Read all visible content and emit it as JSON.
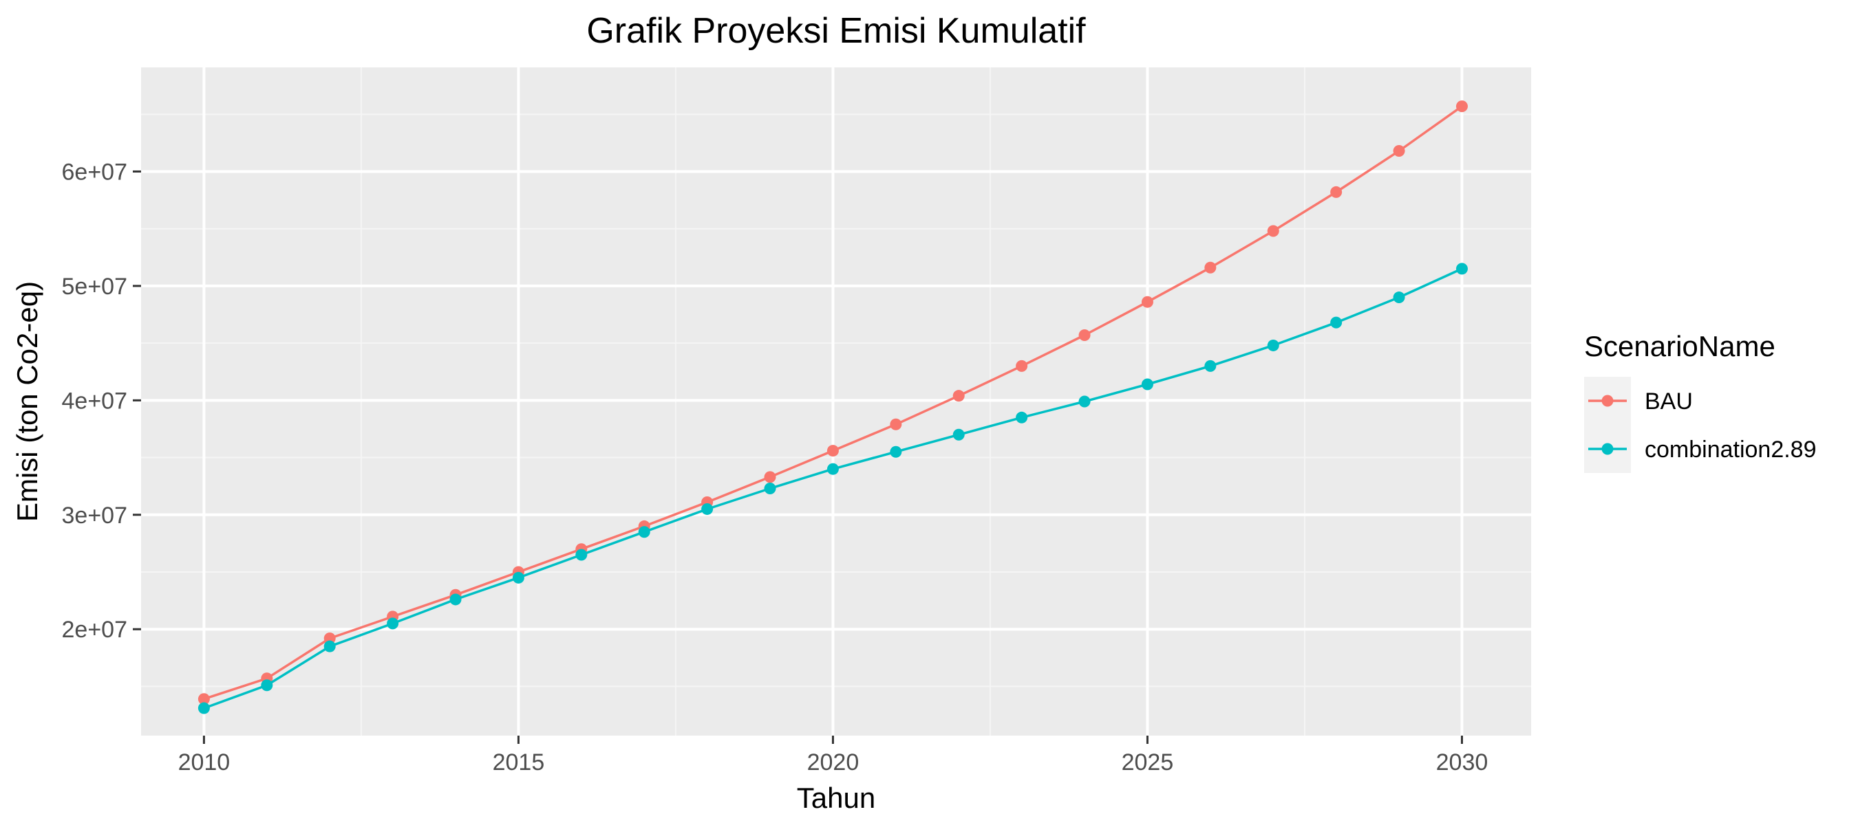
{
  "chart_data": {
    "type": "line",
    "title": "Grafik Proyeksi Emisi Kumulatif",
    "xlabel": "Tahun",
    "ylabel": "Emisi (ton Co2-eq)",
    "xlim": [
      2009,
      2031.1
    ],
    "ylim": [
      10700000,
      69100000
    ],
    "x_ticks": [
      2010,
      2015,
      2020,
      2025,
      2030
    ],
    "x_tick_labels": [
      "2010",
      "2015",
      "2020",
      "2025",
      "2030"
    ],
    "y_ticks": [
      20000000,
      30000000,
      40000000,
      50000000,
      60000000
    ],
    "y_tick_labels": [
      "2e+07",
      "3e+07",
      "4e+07",
      "5e+07",
      "6e+07"
    ],
    "grid": true,
    "legend": {
      "title": "ScenarioName",
      "position": "right"
    },
    "x": [
      2010,
      2011,
      2012,
      2013,
      2014,
      2015,
      2016,
      2017,
      2018,
      2019,
      2020,
      2021,
      2022,
      2023,
      2024,
      2025,
      2026,
      2027,
      2028,
      2029,
      2030
    ],
    "series": [
      {
        "name": "BAU",
        "color": "#F8766D",
        "values": [
          13900000,
          15700000,
          19200000,
          21100000,
          23000000,
          25000000,
          27000000,
          29000000,
          31100000,
          33300000,
          35600000,
          37900000,
          40400000,
          43000000,
          45700000,
          48600000,
          51600000,
          54800000,
          58200000,
          61800000,
          65700000
        ]
      },
      {
        "name": "combination2.89",
        "color": "#00BFC4",
        "values": [
          13100000,
          15100000,
          18500000,
          20500000,
          22600000,
          24500000,
          26500000,
          28500000,
          30500000,
          32300000,
          34000000,
          35500000,
          37000000,
          38500000,
          39900000,
          41400000,
          43000000,
          44800000,
          46800000,
          49000000,
          51500000
        ]
      }
    ]
  },
  "colors": {
    "panel_background": "#EBEBEB",
    "grid_major": "#FFFFFF",
    "grid_minor": "#F5F5F5",
    "tick_label": "#4D4D4D",
    "legend_key_background": "#F2F2F2"
  }
}
